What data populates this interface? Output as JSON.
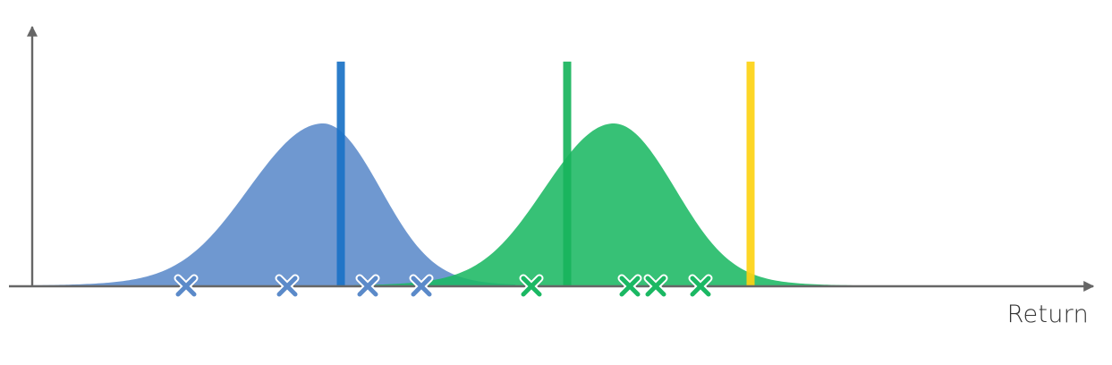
{
  "chart_data": {
    "type": "area",
    "title": "",
    "xlabel": "Return",
    "ylabel": "",
    "xlim": [
      0,
      1200
    ],
    "ylim": [
      0,
      1
    ],
    "grid": false,
    "legend": "none",
    "series": [
      {
        "mean": 325,
        "spread_left": 75,
        "spread_right": 58,
        "peak": 1.0,
        "x_start": -20,
        "x_end": 540,
        "color": "#5B8AC9",
        "samples": [
          172,
          285,
          375,
          435
        ]
      },
      {
        "mean": 650,
        "spread_left": 70,
        "spread_right": 62,
        "peak": 1.0,
        "x_start": 360,
        "x_end": 1000,
        "color": "#1BB863",
        "samples": [
          558,
          668,
          697,
          747
        ]
      }
    ],
    "vertical_lines": [
      {
        "x": 345,
        "color": "#1A72C6",
        "height": 1.38
      },
      {
        "x": 598,
        "color": "#18B45C",
        "height": 1.38
      },
      {
        "x": 803,
        "color": "#FDD213",
        "height": 1.38
      }
    ]
  }
}
